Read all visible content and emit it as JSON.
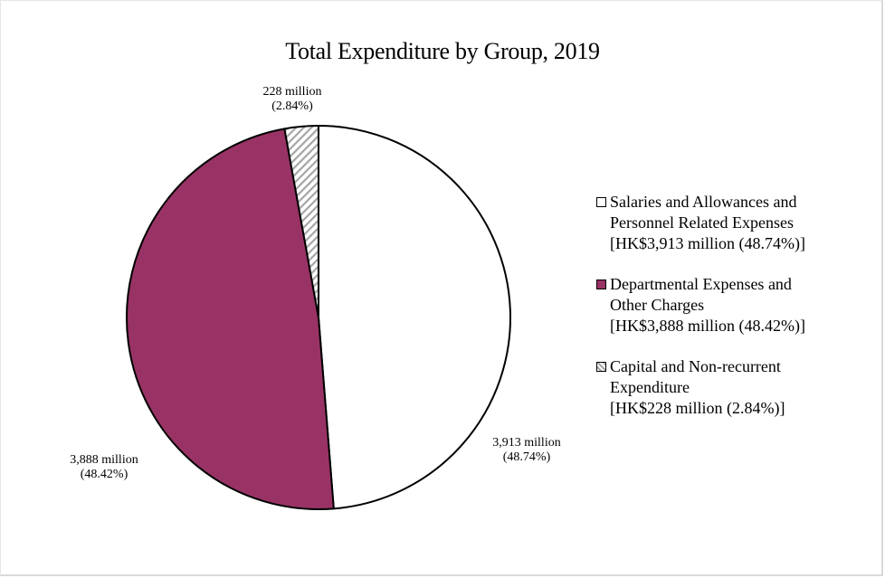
{
  "chart_data": {
    "type": "pie",
    "title": "Total Expenditure by Group, 2019",
    "start_angle_deg": 0,
    "direction": "clockwise",
    "slices": [
      {
        "name": "Salaries and Allowances and Personnel Related Expenses",
        "value": 3913,
        "percent": 48.74,
        "color": "#ffffff",
        "pattern": "solid",
        "data_label": [
          "3,913 million",
          "(48.74%)"
        ],
        "legend_lines": [
          "Salaries and Allowances and",
          "Personnel Related Expenses",
          "[HK$3,913 million (48.74%)]"
        ]
      },
      {
        "name": "Departmental Expenses and Other Charges",
        "value": 3888,
        "percent": 48.42,
        "color": "#993366",
        "pattern": "solid",
        "data_label": [
          "3,888 million",
          "(48.42%)"
        ],
        "legend_lines": [
          "Departmental Expenses and",
          "Other Charges",
          "[HK$3,888 million (48.42%)]"
        ]
      },
      {
        "name": "Capital and Non-recurrent Expenditure",
        "value": 228,
        "percent": 2.84,
        "color": "#ffffff",
        "pattern": "diagonal-hatch",
        "pattern_color": "#a6a6a6",
        "data_label": [
          "228 million",
          "(2.84%)"
        ],
        "legend_lines": [
          "Capital and Non-recurrent",
          "Expenditure",
          "[HK$228 million (2.84%)]"
        ]
      }
    ],
    "legend_position": "right",
    "units": "HK$ million"
  }
}
